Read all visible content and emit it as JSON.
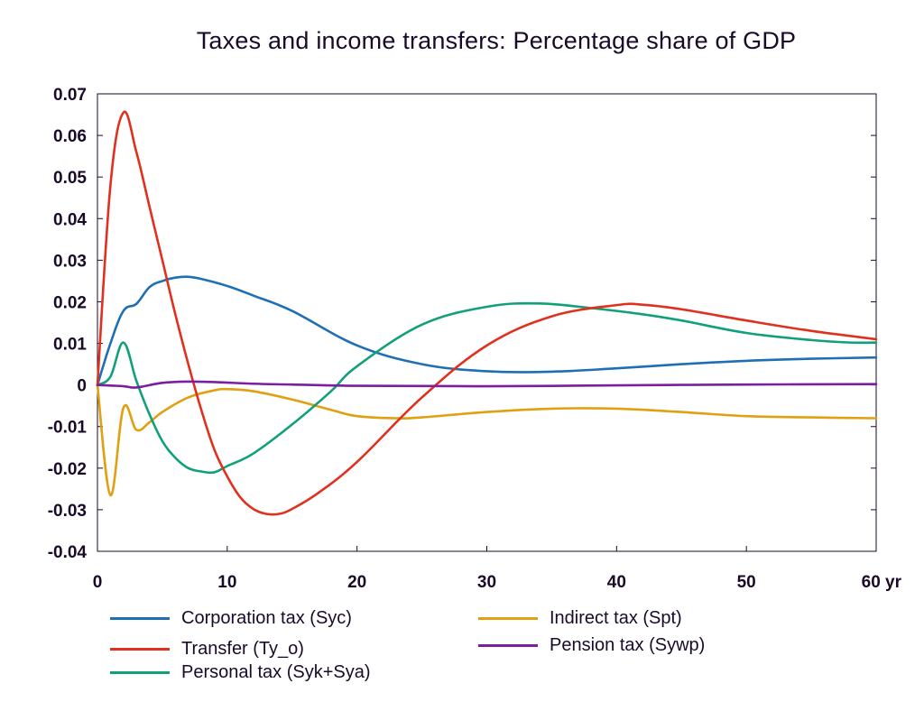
{
  "chart_data": {
    "type": "line",
    "title": "Taxes and income transfers: Percentage share of GDP",
    "xlabel": "",
    "ylabel": "",
    "xlim": [
      0,
      60
    ],
    "ylim": [
      -0.04,
      0.07
    ],
    "x_ticks": [
      "0",
      "10",
      "20",
      "30",
      "40",
      "50",
      "60 yr"
    ],
    "y_ticks": [
      "0.07",
      "0.06",
      "0.05",
      "0.04",
      "0.03",
      "0.02",
      "0.01",
      "0",
      "-0.01",
      "-0.02",
      "-0.03",
      "-0.04"
    ],
    "grid": false,
    "legend_position": "bottom",
    "series": [
      {
        "name": "Corporation tax (Syc)",
        "color": "#1f6fb5",
        "points": [
          [
            0,
            0
          ],
          [
            1,
            0.01
          ],
          [
            2,
            0.0178
          ],
          [
            3,
            0.0195
          ],
          [
            4,
            0.0235
          ],
          [
            5,
            0.025
          ],
          [
            6,
            0.0258
          ],
          [
            7,
            0.026
          ],
          [
            8,
            0.0255
          ],
          [
            10,
            0.0238
          ],
          [
            12,
            0.0215
          ],
          [
            15,
            0.0178
          ],
          [
            20,
            0.0095
          ],
          [
            25,
            0.005
          ],
          [
            30,
            0.0033
          ],
          [
            35,
            0.0032
          ],
          [
            40,
            0.004
          ],
          [
            45,
            0.005
          ],
          [
            50,
            0.0058
          ],
          [
            55,
            0.0063
          ],
          [
            60,
            0.0066
          ]
        ]
      },
      {
        "name": "Transfer (Ty_o)",
        "color": "#e0301e",
        "points": [
          [
            0,
            0
          ],
          [
            1,
            0.048
          ],
          [
            2,
            0.0655
          ],
          [
            3,
            0.056
          ],
          [
            4,
            0.043
          ],
          [
            5,
            0.03
          ],
          [
            6,
            0.017
          ],
          [
            7,
            0.005
          ],
          [
            8,
            -0.006
          ],
          [
            9,
            -0.0155
          ],
          [
            10,
            -0.022
          ],
          [
            11,
            -0.027
          ],
          [
            12,
            -0.0298
          ],
          [
            13,
            -0.031
          ],
          [
            14,
            -0.031
          ],
          [
            15,
            -0.0298
          ],
          [
            17,
            -0.026
          ],
          [
            20,
            -0.0185
          ],
          [
            25,
            -0.003
          ],
          [
            30,
            0.0095
          ],
          [
            35,
            0.0165
          ],
          [
            40,
            0.0192
          ],
          [
            42,
            0.0193
          ],
          [
            45,
            0.0182
          ],
          [
            50,
            0.0155
          ],
          [
            55,
            0.013
          ],
          [
            60,
            0.011
          ]
        ]
      },
      {
        "name": "Personal tax (Syk+Sya)",
        "color": "#12a07a",
        "points": [
          [
            0,
            0
          ],
          [
            1,
            0.002
          ],
          [
            2,
            0.0102
          ],
          [
            3,
            0.001
          ],
          [
            4,
            -0.007
          ],
          [
            5,
            -0.0135
          ],
          [
            6,
            -0.0175
          ],
          [
            7,
            -0.02
          ],
          [
            8,
            -0.0208
          ],
          [
            9,
            -0.021
          ],
          [
            10,
            -0.0195
          ],
          [
            12,
            -0.0165
          ],
          [
            15,
            -0.0095
          ],
          [
            18,
            -0.0015
          ],
          [
            20,
            0.0045
          ],
          [
            25,
            0.0145
          ],
          [
            30,
            0.0188
          ],
          [
            34,
            0.0196
          ],
          [
            38,
            0.0185
          ],
          [
            42,
            0.017
          ],
          [
            45,
            0.0155
          ],
          [
            50,
            0.0125
          ],
          [
            55,
            0.0108
          ],
          [
            58,
            0.0102
          ],
          [
            60,
            0.0102
          ]
        ]
      },
      {
        "name": "Indirect tax (Spt)",
        "color": "#e0a012",
        "points": [
          [
            0,
            0
          ],
          [
            1,
            -0.0265
          ],
          [
            2,
            -0.0055
          ],
          [
            3,
            -0.0108
          ],
          [
            4,
            -0.009
          ],
          [
            5,
            -0.0065
          ],
          [
            7,
            -0.003
          ],
          [
            9,
            -0.0013
          ],
          [
            10,
            -0.001
          ],
          [
            12,
            -0.0015
          ],
          [
            15,
            -0.0035
          ],
          [
            18,
            -0.006
          ],
          [
            20,
            -0.0075
          ],
          [
            23,
            -0.008
          ],
          [
            25,
            -0.0078
          ],
          [
            30,
            -0.0065
          ],
          [
            35,
            -0.0057
          ],
          [
            40,
            -0.0057
          ],
          [
            45,
            -0.0065
          ],
          [
            50,
            -0.0075
          ],
          [
            55,
            -0.0078
          ],
          [
            60,
            -0.008
          ]
        ]
      },
      {
        "name": "Pension tax (Sywp)",
        "color": "#7b1fa0",
        "points": [
          [
            0,
            0
          ],
          [
            2,
            -0.0003
          ],
          [
            3,
            -0.0006
          ],
          [
            5,
            0.0005
          ],
          [
            7,
            0.0008
          ],
          [
            9,
            0.0007
          ],
          [
            12,
            0.0003
          ],
          [
            15,
            0.0001
          ],
          [
            20,
            -0.0002
          ],
          [
            30,
            -0.0003
          ],
          [
            40,
            -0.0001
          ],
          [
            50,
            0.0001
          ],
          [
            60,
            0.0002
          ]
        ]
      }
    ],
    "axis_color": "#1a0a2a"
  }
}
